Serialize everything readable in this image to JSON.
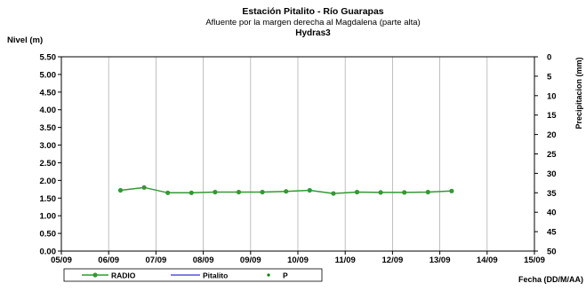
{
  "chart_data": {
    "type": "line",
    "title": "Estación Pitalito - Río Guarapas",
    "subtitle": "Afluente por la margen derecha al Magdalena (parte alta)",
    "subtitle2": "Hydras3",
    "ylabel": "Nivel (m)",
    "y2label": "Precipitacion (mm)",
    "xlabel": "Fecha (DD/M/AA)",
    "ylim": [
      0,
      5.5
    ],
    "y2lim": [
      0,
      50
    ],
    "y2_inverted": true,
    "yticks": [
      "0.00",
      "0.50",
      "1.00",
      "1.50",
      "2.00",
      "2.50",
      "3.00",
      "3.50",
      "4.00",
      "4.50",
      "5.00",
      "5.50"
    ],
    "y2ticks": [
      "0",
      "5",
      "10",
      "15",
      "20",
      "25",
      "30",
      "35",
      "40",
      "45",
      "50"
    ],
    "xticks": [
      "05/09",
      "06/09",
      "07/09",
      "08/09",
      "09/09",
      "10/09",
      "11/09",
      "12/09",
      "13/09",
      "14/09",
      "15/09"
    ],
    "grid": "vertical",
    "legend_position": "bottom-left",
    "series": [
      {
        "name": "RADIO",
        "color": "#339933",
        "marker": "circle",
        "x": [
          1.25,
          1.75,
          2.25,
          2.75,
          3.25,
          3.75,
          4.25,
          4.75,
          5.25,
          5.75,
          6.25,
          6.75,
          7.25,
          7.75,
          8.25
        ],
        "values": [
          1.72,
          1.8,
          1.65,
          1.65,
          1.67,
          1.67,
          1.67,
          1.69,
          1.72,
          1.63,
          1.67,
          1.66,
          1.66,
          1.67,
          1.7
        ]
      },
      {
        "name": "Pitalito",
        "color": "#3333cc",
        "x": [],
        "values": []
      },
      {
        "name": "P",
        "color": "#008000",
        "marker": "dot",
        "x": [],
        "values": []
      }
    ]
  }
}
